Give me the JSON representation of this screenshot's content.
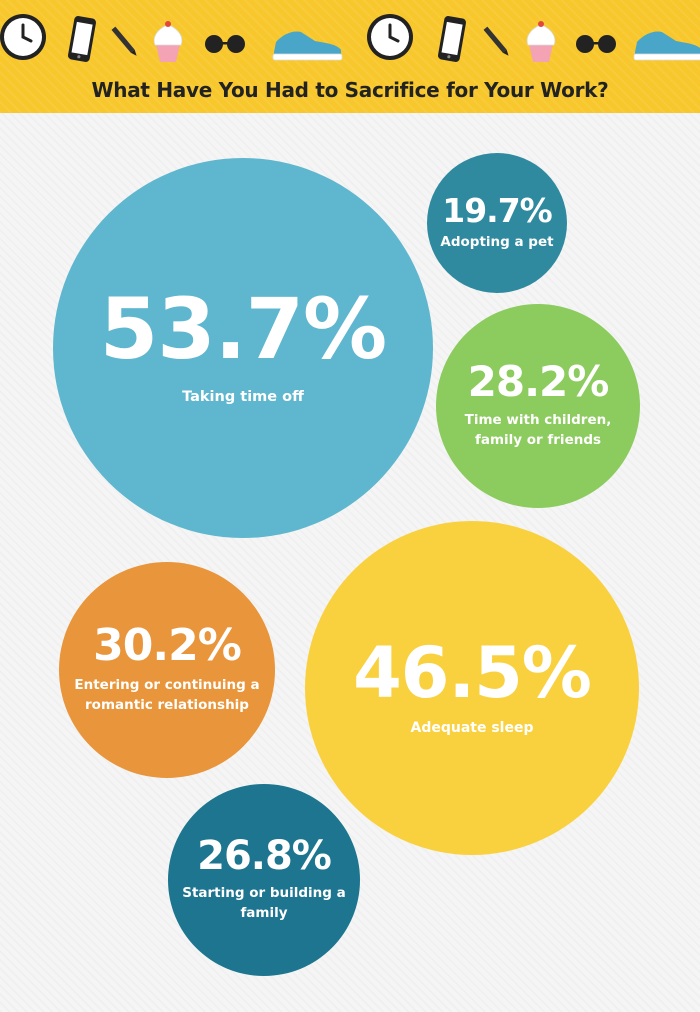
{
  "header": {
    "title": "What Have You Had to Sacrifice for Your Work?",
    "background_color": "#f7c72c",
    "icons": [
      "clock-icon",
      "smartphone-icon",
      "pencil-icon",
      "cupcake-icon",
      "sunglasses-icon",
      "sneaker-icon",
      "clock-icon",
      "smartphone-icon",
      "pencil-icon",
      "cupcake-icon",
      "sunglasses-icon",
      "sneaker-icon"
    ]
  },
  "chart_data": {
    "type": "bubble",
    "title": "What Have You Had to Sacrifice for Your Work?",
    "unit": "%",
    "points": [
      {
        "label": "Taking time off",
        "value": 53.7,
        "display": "53.7%",
        "color": "#5fb6cf"
      },
      {
        "label": "Adopting a pet",
        "value": 19.7,
        "display": "19.7%",
        "color": "#2f8aa0"
      },
      {
        "label": "Time with children, family or friends",
        "value": 28.2,
        "display": "28.2%",
        "color": "#8ccb5e"
      },
      {
        "label": "Entering or continuing a romantic relationship",
        "value": 30.2,
        "display": "30.2%",
        "color": "#e8953b"
      },
      {
        "label": "Adequate sleep",
        "value": 46.5,
        "display": "46.5%",
        "color": "#f9d13e"
      },
      {
        "label": "Starting or building a family",
        "value": 26.8,
        "display": "26.8%",
        "color": "#1e7590"
      }
    ]
  }
}
